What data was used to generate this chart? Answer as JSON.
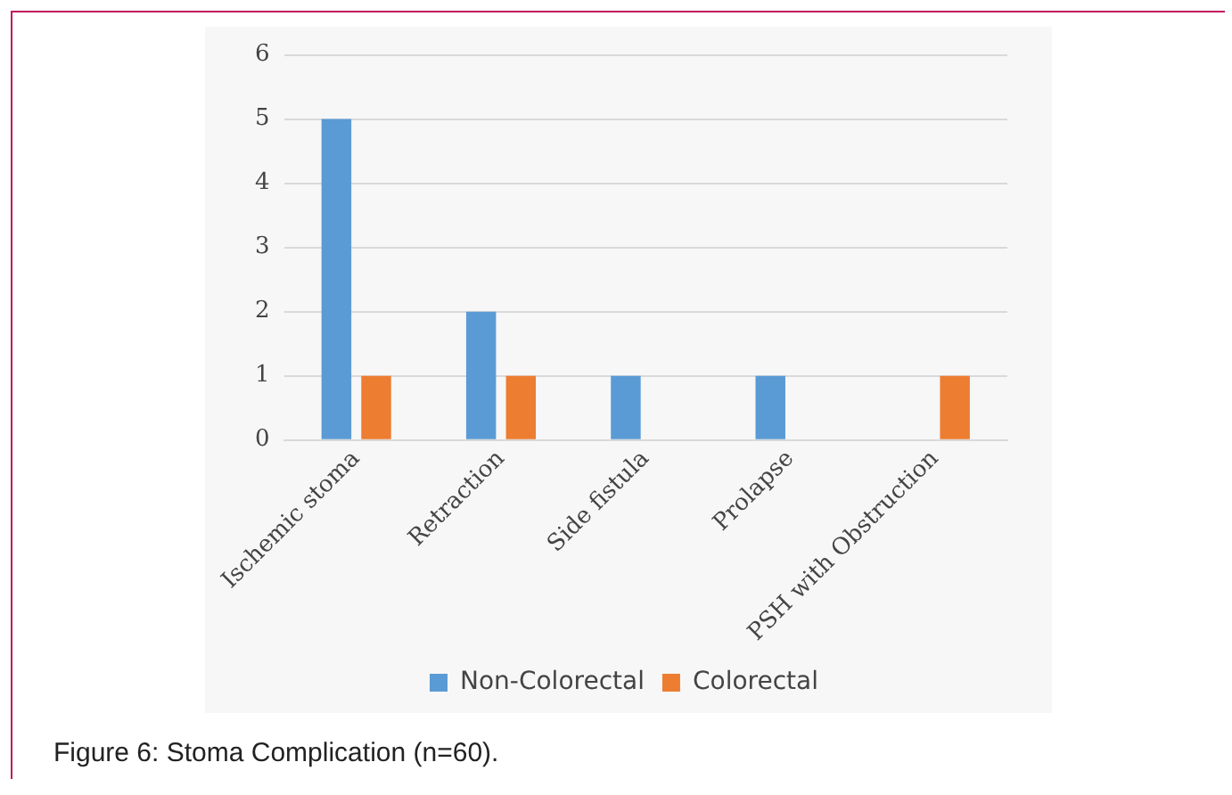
{
  "chart_data": {
    "type": "bar",
    "categories": [
      "Ischemic stoma",
      "Retraction",
      "Side fistula",
      "Prolapse",
      "PSH with Obstruction"
    ],
    "series": [
      {
        "name": "Non-Colorectal",
        "color": "#5b9bd5",
        "values": [
          5,
          2,
          1,
          1,
          0
        ]
      },
      {
        "name": "Colorectal",
        "color": "#ed7d31",
        "values": [
          1,
          1,
          0,
          0,
          1
        ]
      }
    ],
    "ylim": [
      0,
      6
    ],
    "yticks": [
      0,
      1,
      2,
      3,
      4,
      5,
      6
    ],
    "grid": "y",
    "legend": "bottom",
    "annotations": [
      "Figure 6: Stoma Complication (n=60)."
    ]
  }
}
